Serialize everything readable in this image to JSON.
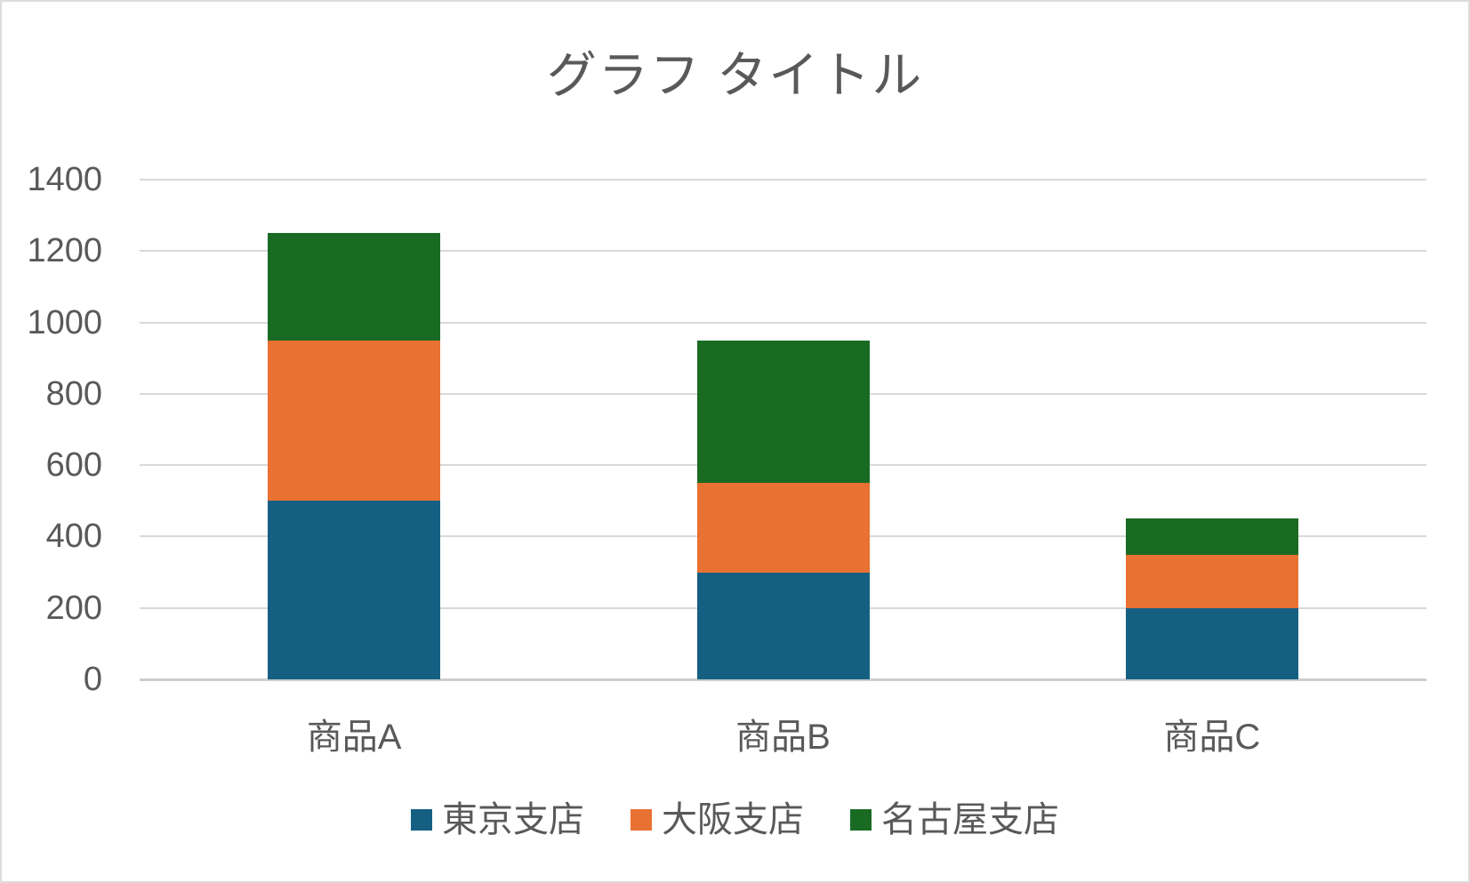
{
  "chart_data": {
    "type": "bar",
    "stacked": true,
    "title": "グラフ タイトル",
    "categories": [
      "商品A",
      "商品B",
      "商品C"
    ],
    "series": [
      {
        "name": "東京支店",
        "color": "#156082",
        "values": [
          500,
          300,
          200
        ]
      },
      {
        "name": "大阪支店",
        "color": "#E97132",
        "values": [
          450,
          250,
          150
        ]
      },
      {
        "name": "名古屋支店",
        "color": "#196B24",
        "values": [
          300,
          400,
          100
        ]
      }
    ],
    "stack_totals": [
      1250,
      950,
      450
    ],
    "ylim": [
      0,
      1400
    ],
    "yticks": [
      0,
      200,
      400,
      600,
      800,
      1000,
      1200,
      1400
    ],
    "xlabel": "",
    "ylabel": "",
    "grid": true,
    "legend_position": "bottom"
  },
  "style": {
    "title_color": "#595959",
    "axis_text_color": "#595959",
    "gridline_color": "#D9D9D9",
    "zero_line_color": "#CDCDCD",
    "background_color": "#FFFFFF",
    "border_color": "#DCDCDC"
  }
}
